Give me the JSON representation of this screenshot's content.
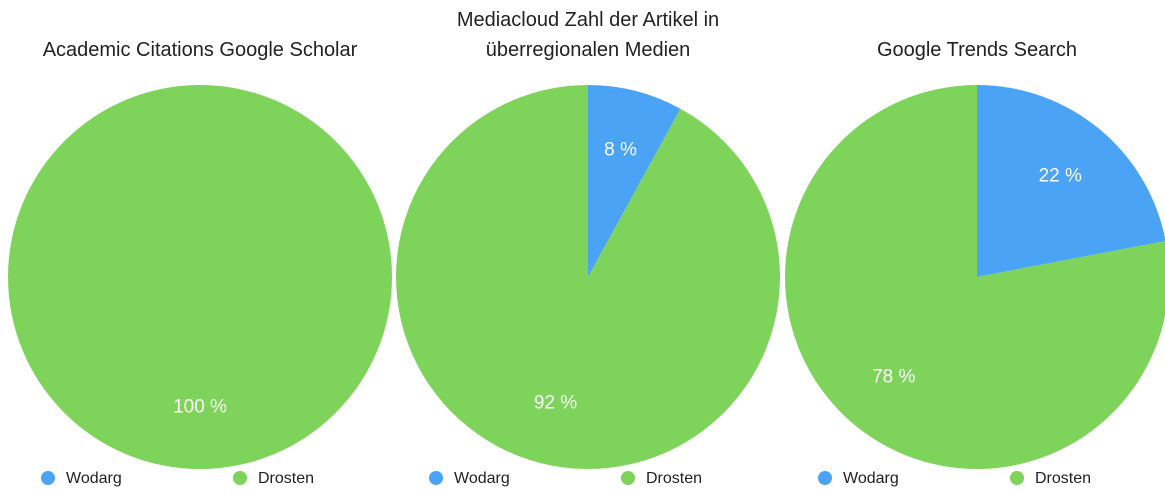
{
  "chart_data": [
    {
      "type": "pie",
      "title": "Academic Citations Google Scholar",
      "categories": [
        "Wodarg",
        "Drosten"
      ],
      "values": [
        0,
        100
      ],
      "value_labels": [
        null,
        "100 %"
      ],
      "colors": [
        "#4aa3f5",
        "#7ed35a"
      ]
    },
    {
      "type": "pie",
      "title": "Mediacloud Zahl der Artikel in\nüberregionalen Medien",
      "categories": [
        "Wodarg",
        "Drosten"
      ],
      "values": [
        8,
        92
      ],
      "value_labels": [
        "8 %",
        "92 %"
      ],
      "colors": [
        "#4aa3f5",
        "#7ed35a"
      ]
    },
    {
      "type": "pie",
      "title": "Google Trends Search",
      "categories": [
        "Wodarg",
        "Drosten"
      ],
      "values": [
        22,
        78
      ],
      "value_labels": [
        "22 %",
        "78 %"
      ],
      "colors": [
        "#4aa3f5",
        "#7ed35a"
      ]
    }
  ]
}
